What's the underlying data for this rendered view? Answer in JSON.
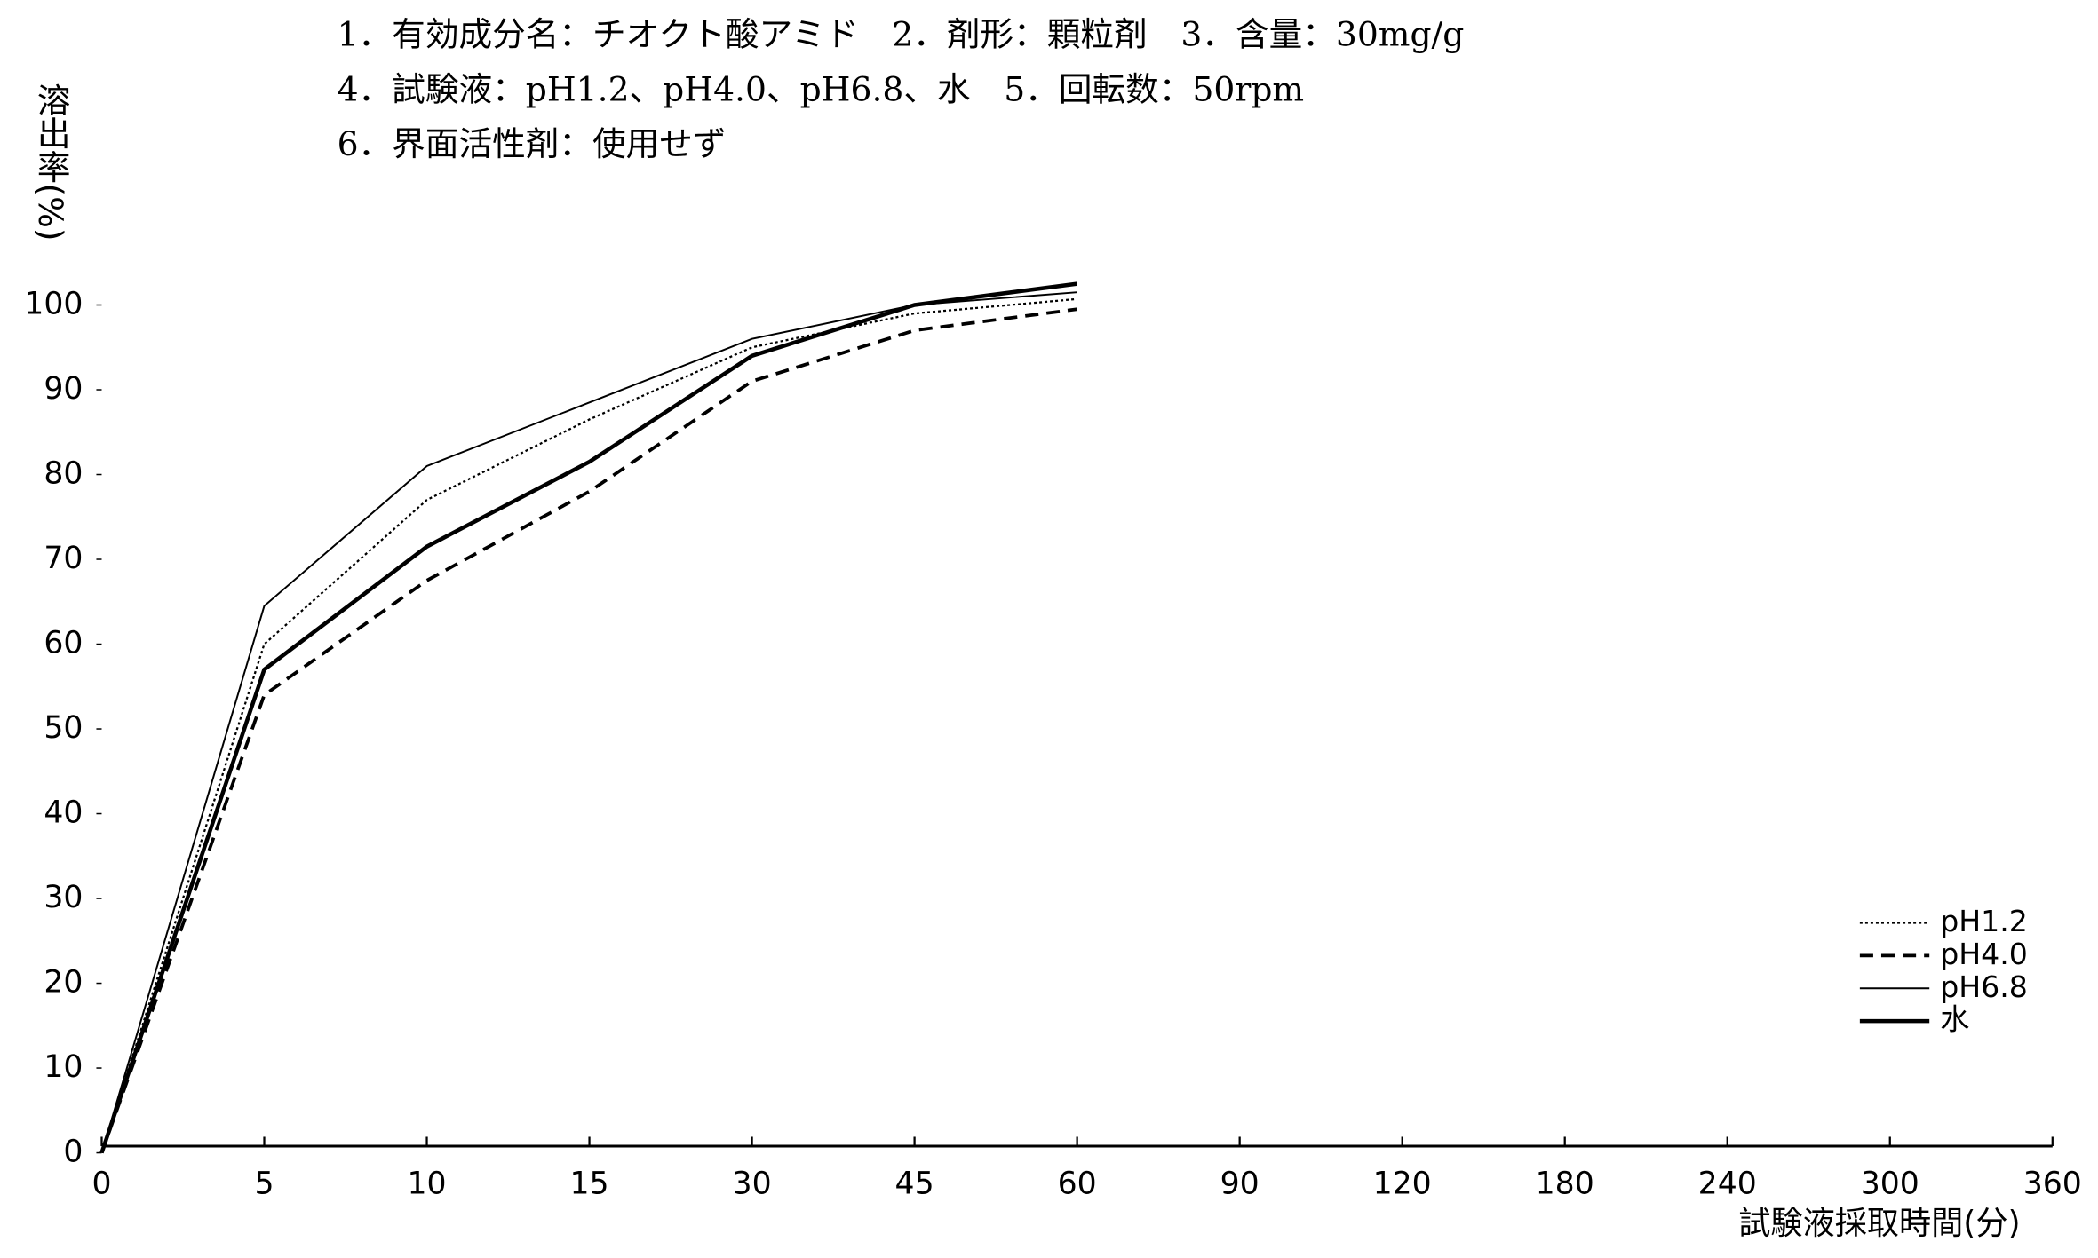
{
  "chart_data": {
    "type": "line",
    "annotations": [
      "1．有効成分名：チオクト酸アミド　2．剤形：顆粒剤　3．含量：30mg/g",
      "4．試験液：pH1.2、pH4.0、pH6.8、水　5．回転数：50rpm",
      "6．界面活性剤：使用せず"
    ],
    "ylabel": "溶出率(%)",
    "xlabel": "試験液採取時間(分)",
    "categories": [
      "0",
      "5",
      "10",
      "15",
      "30",
      "45",
      "60",
      "90",
      "120",
      "180",
      "240",
      "300",
      "360"
    ],
    "ylim": [
      0,
      100
    ],
    "yticks": [
      0,
      10,
      20,
      30,
      40,
      50,
      60,
      70,
      80,
      90,
      100
    ],
    "legend": "lower right",
    "series": [
      {
        "name": "pH1.2",
        "color": "#000000",
        "dash": "dotted",
        "width": 1.5,
        "values": [
          0,
          60,
          77,
          86.5,
          95,
          99,
          100.7,
          null,
          null,
          null,
          null,
          null,
          null
        ]
      },
      {
        "name": "pH4.0",
        "color": "#000000",
        "dash": "dashed",
        "width": 2.5,
        "values": [
          0,
          54,
          67.5,
          78,
          91,
          97,
          99.5,
          null,
          null,
          null,
          null,
          null,
          null
        ]
      },
      {
        "name": "pH6.8",
        "color": "#000000",
        "dash": "solid",
        "width": 1.3,
        "values": [
          0,
          64.5,
          81,
          88.5,
          96,
          100,
          101.5,
          null,
          null,
          null,
          null,
          null,
          null
        ]
      },
      {
        "name": "水",
        "color": "#000000",
        "dash": "solid",
        "width": 3,
        "values": [
          0,
          57,
          71.5,
          81.5,
          94,
          100,
          102.5,
          null,
          null,
          null,
          null,
          null,
          null
        ]
      }
    ]
  }
}
